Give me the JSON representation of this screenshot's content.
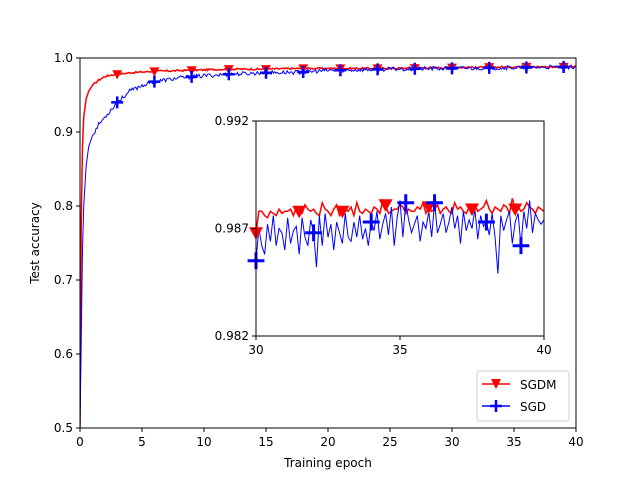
{
  "chart_data": {
    "main": {
      "type": "line",
      "xlabel": "Training epoch",
      "ylabel": "Test accuracy",
      "xlim": [
        0,
        40
      ],
      "ylim": [
        0.5,
        1.0
      ],
      "xticks": [
        0,
        5,
        10,
        15,
        20,
        25,
        30,
        35,
        40
      ],
      "xtick_labels": [
        "0",
        "5",
        "10",
        "15",
        "20",
        "25",
        "30",
        "35",
        "40"
      ],
      "yticks": [
        0.5,
        0.6,
        0.7,
        0.8,
        0.9,
        1.0
      ],
      "ytick_labels": [
        "0.5",
        "0.6",
        "0.7",
        "0.8",
        "0.9",
        "1.0"
      ],
      "legend": {
        "location": "lower-right"
      },
      "series": [
        {
          "name": "SGDM",
          "color": "#ff0000",
          "marker": "triangle-down",
          "marker_x": [
            3,
            6,
            9,
            12,
            15,
            18,
            21,
            24,
            27,
            30,
            33,
            36,
            39
          ],
          "x": [
            0,
            0.1,
            0.2,
            0.3,
            0.5,
            0.7,
            1,
            1.5,
            2,
            2.5,
            3,
            4,
            5,
            6,
            8,
            10,
            12,
            15,
            18,
            20,
            25,
            30,
            35,
            40
          ],
          "values": [
            0.5,
            0.78,
            0.88,
            0.92,
            0.945,
            0.955,
            0.963,
            0.97,
            0.975,
            0.977,
            0.978,
            0.98,
            0.981,
            0.982,
            0.983,
            0.984,
            0.985,
            0.985,
            0.986,
            0.986,
            0.986,
            0.987,
            0.988,
            0.988
          ]
        },
        {
          "name": "SGD",
          "color": "#0000ff",
          "marker": "plus",
          "marker_x": [
            3,
            6,
            9,
            12,
            15,
            18,
            21,
            24,
            27,
            30,
            33,
            36,
            39
          ],
          "x": [
            0,
            0.1,
            0.2,
            0.3,
            0.5,
            0.7,
            1,
            1.5,
            2,
            3,
            4,
            5,
            6,
            8,
            10,
            12,
            15,
            18,
            20,
            25,
            30,
            35,
            40
          ],
          "values": [
            0.5,
            0.62,
            0.74,
            0.8,
            0.855,
            0.88,
            0.895,
            0.91,
            0.92,
            0.94,
            0.955,
            0.963,
            0.968,
            0.973,
            0.976,
            0.978,
            0.98,
            0.981,
            0.983,
            0.985,
            0.986,
            0.987,
            0.988
          ]
        }
      ]
    },
    "inset": {
      "type": "line",
      "xlim": [
        30,
        40
      ],
      "ylim": [
        0.982,
        0.992
      ],
      "xticks": [
        30,
        35,
        40
      ],
      "xtick_labels": [
        "30",
        "35",
        "40"
      ],
      "yticks": [
        0.982,
        0.987,
        0.992
      ],
      "ytick_labels": [
        "0.982",
        "0.987",
        "0.992"
      ],
      "series": [
        {
          "name": "SGDM",
          "color": "#ff0000",
          "marker": "triangle-down",
          "marker_x": [
            30,
            31.5,
            33,
            34.5,
            36,
            37.5,
            39
          ],
          "values": [
            0.9868,
            0.9878,
            0.9878,
            0.9876,
            0.9875,
            0.9878,
            0.9877,
            0.9876,
            0.9879,
            0.9877,
            0.9878,
            0.9878,
            0.9879,
            0.9876,
            0.988,
            0.9878,
            0.9877,
            0.9881,
            0.9879,
            0.9878,
            0.9879,
            0.9877,
            0.9876,
            0.9882,
            0.9879,
            0.9878,
            0.9876,
            0.9879,
            0.9881,
            0.9876,
            0.9878,
            0.9879,
            0.9878,
            0.988,
            0.9876,
            0.9882,
            0.9878,
            0.9877,
            0.9879,
            0.9878,
            0.9877,
            0.988,
            0.9879,
            0.9877,
            0.9883,
            0.9881,
            0.9877,
            0.9878,
            0.9879,
            0.9879,
            0.9881,
            0.988,
            0.9877,
            0.9879,
            0.9878,
            0.9878,
            0.988,
            0.9879,
            0.9882,
            0.9877,
            0.988,
            0.9878,
            0.9879,
            0.9881,
            0.9877,
            0.9879,
            0.988,
            0.9878,
            0.9877,
            0.9882,
            0.9879,
            0.988,
            0.9878,
            0.9877,
            0.988,
            0.9879,
            0.9881,
            0.9878,
            0.9879,
            0.988,
            0.9883,
            0.9879,
            0.9877,
            0.988,
            0.9879,
            0.9878,
            0.9881,
            0.988,
            0.9877,
            0.9884,
            0.9879,
            0.988,
            0.9878,
            0.9879,
            0.9882,
            0.988,
            0.9879,
            0.9877,
            0.988,
            0.9879,
            0.9878
          ]
        },
        {
          "name": "SGD",
          "color": "#0000ff",
          "marker": "plus",
          "marker_x": [
            30,
            32,
            34,
            35.2,
            36.2,
            38,
            39.2
          ],
          "values": [
            0.9855,
            0.987,
            0.9862,
            0.9858,
            0.9872,
            0.9864,
            0.9876,
            0.9862,
            0.987,
            0.9868,
            0.986,
            0.9875,
            0.9863,
            0.9869,
            0.9871,
            0.9858,
            0.9875,
            0.9866,
            0.9862,
            0.9874,
            0.9868,
            0.9852,
            0.9876,
            0.9862,
            0.9877,
            0.9866,
            0.9872,
            0.986,
            0.9873,
            0.9868,
            0.9863,
            0.9877,
            0.9866,
            0.9864,
            0.9873,
            0.9866,
            0.9876,
            0.9865,
            0.987,
            0.9862,
            0.9873,
            0.9869,
            0.9878,
            0.9865,
            0.9872,
            0.9877,
            0.9867,
            0.988,
            0.9862,
            0.9875,
            0.9883,
            0.9866,
            0.9882,
            0.9874,
            0.9868,
            0.9872,
            0.9876,
            0.9864,
            0.9873,
            0.987,
            0.9878,
            0.9866,
            0.9882,
            0.9868,
            0.9872,
            0.9877,
            0.9868,
            0.9873,
            0.988,
            0.987,
            0.9876,
            0.9863,
            0.9878,
            0.9869,
            0.9874,
            0.987,
            0.9879,
            0.9865,
            0.9876,
            0.9871,
            0.9873,
            0.9867,
            0.9877,
            0.9866,
            0.9849,
            0.9876,
            0.9869,
            0.9874,
            0.9878,
            0.9863,
            0.9873,
            0.9877,
            0.9862,
            0.9878,
            0.987,
            0.9883,
            0.9868,
            0.9877,
            0.9874,
            0.9872,
            0.9874
          ]
        }
      ]
    }
  }
}
